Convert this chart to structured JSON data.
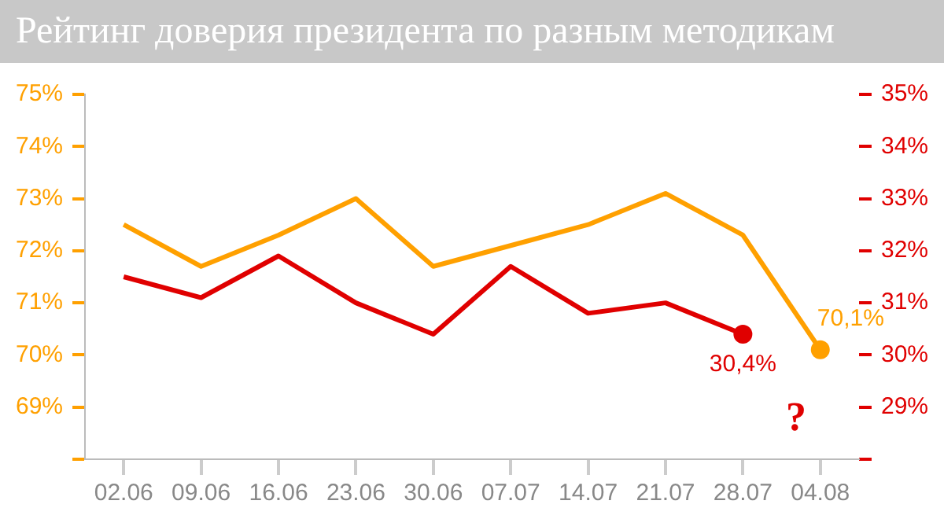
{
  "chart_data": {
    "type": "line",
    "title": "Рейтинг доверия президента по разным методикам",
    "categories": [
      "02.06",
      "09.06",
      "16.06",
      "23.06",
      "30.06",
      "07.07",
      "14.07",
      "21.07",
      "28.07",
      "04.08"
    ],
    "series": [
      {
        "color": "#ffa000",
        "values": [
          72.5,
          71.7,
          72.3,
          73.0,
          71.7,
          72.1,
          72.5,
          73.1,
          72.3,
          70.1
        ],
        "value_labels": [
          null,
          null,
          null,
          null,
          null,
          null,
          null,
          null,
          null,
          "70,1%"
        ]
      },
      {
        "color": "#e00000",
        "axis": "y2",
        "values": [
          31.5,
          31.1,
          31.9,
          31.0,
          30.4,
          31.7,
          30.8,
          31.0,
          30.4,
          null
        ],
        "value_labels": [
          null,
          null,
          null,
          null,
          null,
          null,
          null,
          null,
          "30,4%",
          null
        ]
      }
    ],
    "ylim": [
      68,
      75
    ],
    "yticks": [
      {
        "value": 68,
        "label": null
      },
      {
        "value": 69,
        "label": "69%"
      },
      {
        "value": 70,
        "label": "70%"
      },
      {
        "value": 71,
        "label": "71%"
      },
      {
        "value": 72,
        "label": "72%"
      },
      {
        "value": 73,
        "label": "73%"
      },
      {
        "value": 74,
        "label": "74%"
      },
      {
        "value": 75,
        "label": "75%"
      }
    ],
    "y2lim": [
      28,
      35
    ],
    "y2ticks": [
      {
        "value": 28,
        "label": null
      },
      {
        "value": 29,
        "label": "29%"
      },
      {
        "value": 30,
        "label": "30%"
      },
      {
        "value": 31,
        "label": "31%"
      },
      {
        "value": 32,
        "label": "32%"
      },
      {
        "value": 33,
        "label": "33%"
      },
      {
        "value": 34,
        "label": "34%"
      },
      {
        "value": 35,
        "label": "35%"
      }
    ],
    "annotations": [
      "?"
    ],
    "grid": false,
    "legend": false,
    "marker": "none",
    "line_style": "solid"
  }
}
